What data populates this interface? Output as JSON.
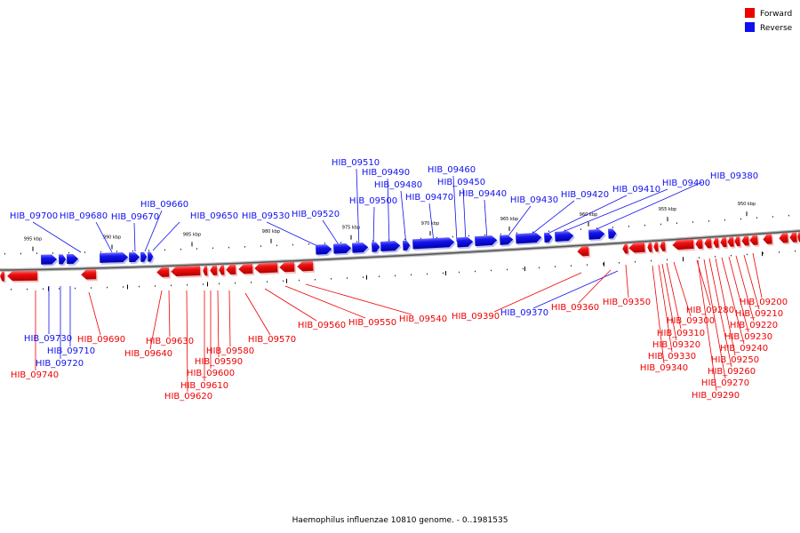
{
  "legend": {
    "forward": {
      "label": "Forward",
      "color": "#ee0000"
    },
    "reverse": {
      "label": "Reverse",
      "color": "#1010ee"
    }
  },
  "caption": "Haemophilus influenzae 10810 genome. - 0..1981535",
  "scale_labels": [
    "995 kbp",
    "990 kbp",
    "985 kbp",
    "980 kbp",
    "975 kbp",
    "970 kbp",
    "965 kbp",
    "960 kbp",
    "955 kbp",
    "950 kbp"
  ],
  "reverse_genes": [
    "HIB_09700",
    "HIB_09680",
    "HIB_09670",
    "HIB_09660",
    "HIB_09650",
    "HIB_09530",
    "HIB_09520",
    "HIB_09510",
    "HIB_09500",
    "HIB_09490",
    "HIB_09480",
    "HIB_09470",
    "HIB_09460",
    "HIB_09450",
    "HIB_09440",
    "HIB_09430",
    "HIB_09420",
    "HIB_09410",
    "HIB_09400",
    "HIB_09380",
    "HIB_09730",
    "HIB_09710",
    "HIB_09720",
    "HIB_09370"
  ],
  "forward_genes": [
    "HIB_09690",
    "HIB_09740",
    "HIB_09630",
    "HIB_09640",
    "HIB_09580",
    "HIB_09590",
    "HIB_09600",
    "HIB_09610",
    "HIB_09620",
    "HIB_09570",
    "HIB_09560",
    "HIB_09550",
    "HIB_09540",
    "HIB_09390",
    "HIB_09360",
    "HIB_09350",
    "HIB_09340",
    "HIB_09330",
    "HIB_09320",
    "HIB_09310",
    "HIB_09300",
    "HIB_09290",
    "HIB_09280",
    "HIB_09270",
    "HIB_09260",
    "HIB_09250",
    "HIB_09240",
    "HIB_09230",
    "HIB_09220",
    "HIB_09210",
    "HIB_09200"
  ]
}
